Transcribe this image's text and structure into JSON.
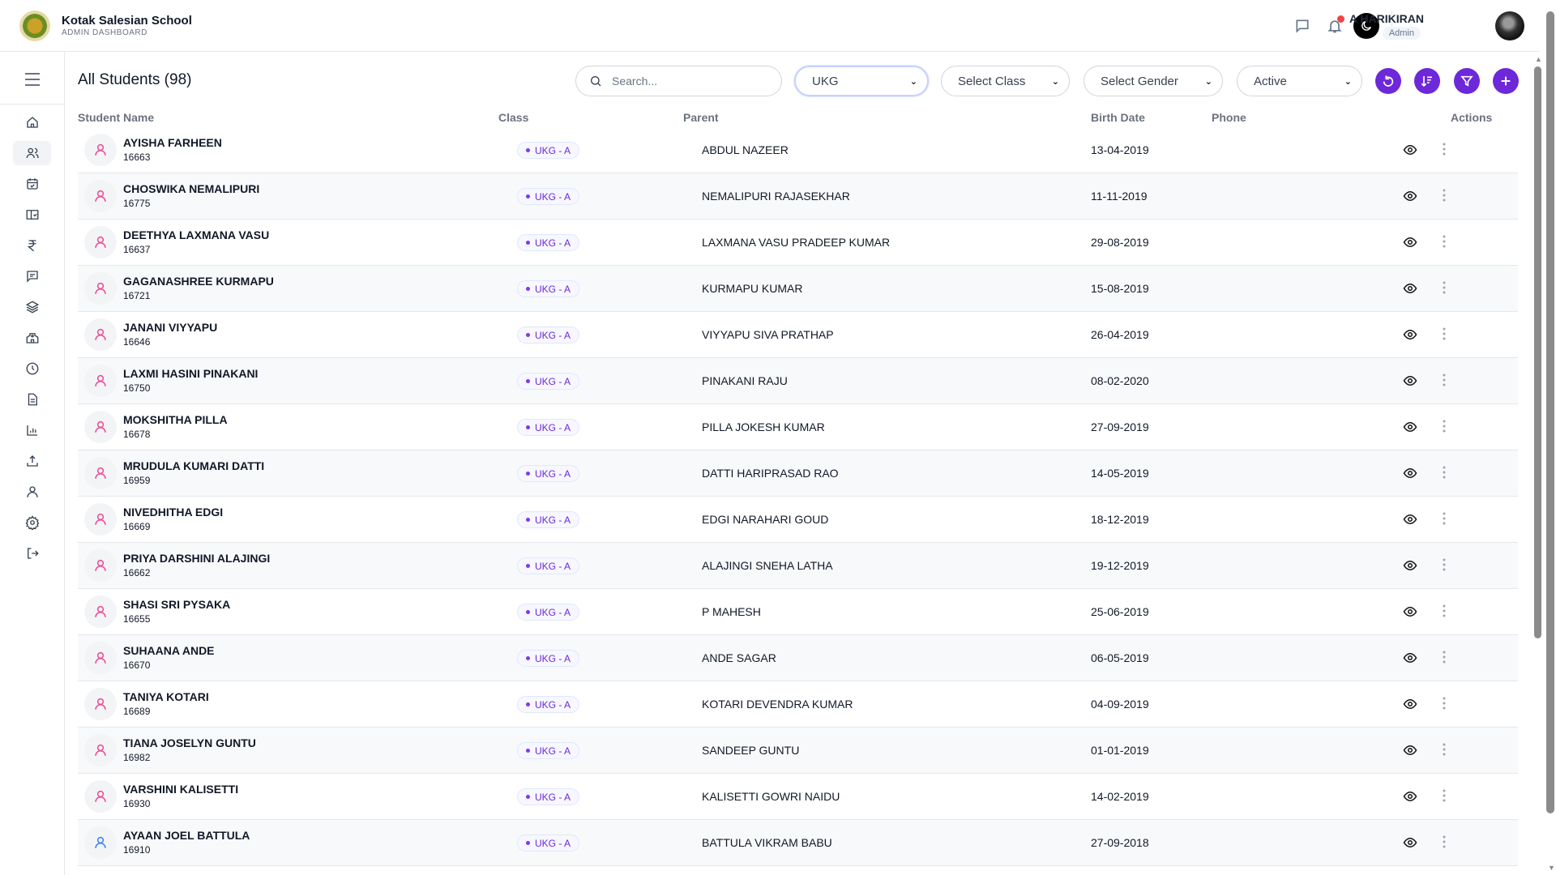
{
  "header": {
    "school_name": "Kotak Salesian School",
    "subtitle": "ADMIN DASHBOARD",
    "user_name": "A HARIKIRAN",
    "user_role": "Admin"
  },
  "sidebar": {
    "items": [
      {
        "icon": "home-icon"
      },
      {
        "icon": "users-icon",
        "active": true
      },
      {
        "icon": "calendar-check-icon"
      },
      {
        "icon": "book-check-icon"
      },
      {
        "icon": "rupee-icon"
      },
      {
        "icon": "message-icon"
      },
      {
        "icon": "layers-icon"
      },
      {
        "icon": "school-icon"
      },
      {
        "icon": "clock-icon"
      },
      {
        "icon": "document-icon"
      },
      {
        "icon": "bar-chart-icon"
      },
      {
        "icon": "upload-icon"
      },
      {
        "icon": "user-icon"
      },
      {
        "icon": "settings-icon"
      },
      {
        "icon": "logout-icon"
      }
    ]
  },
  "page": {
    "title": "All Students (98)"
  },
  "filters": {
    "search_placeholder": "Search...",
    "grade": "UKG",
    "class": "Select Class",
    "gender": "Select Gender",
    "status": "Active"
  },
  "colors": {
    "accent": "#6d28d9",
    "female": "#ec4899",
    "male": "#3b82f6"
  },
  "table": {
    "headers": {
      "name": "Student Name",
      "class": "Class",
      "parent": "Parent",
      "birth": "Birth Date",
      "phone": "Phone",
      "actions": "Actions"
    },
    "rows": [
      {
        "name": "AYISHA FARHEEN",
        "id": "16663",
        "class": "UKG - A",
        "parent": "ABDUL NAZEER",
        "birth": "13-04-2019",
        "gender": "female"
      },
      {
        "name": "CHOSWIKA NEMALIPURI",
        "id": "16775",
        "class": "UKG - A",
        "parent": "NEMALIPURI RAJASEKHAR",
        "birth": "11-11-2019",
        "gender": "female"
      },
      {
        "name": "DEETHYA LAXMANA VASU",
        "id": "16637",
        "class": "UKG - A",
        "parent": "LAXMANA VASU PRADEEP KUMAR",
        "birth": "29-08-2019",
        "gender": "female"
      },
      {
        "name": "GAGANASHREE KURMAPU",
        "id": "16721",
        "class": "UKG - A",
        "parent": "KURMAPU KUMAR",
        "birth": "15-08-2019",
        "gender": "female"
      },
      {
        "name": "JANANI VIYYAPU",
        "id": "16646",
        "class": "UKG - A",
        "parent": "VIYYAPU SIVA PRATHAP",
        "birth": "26-04-2019",
        "gender": "female"
      },
      {
        "name": "LAXMI HASINI PINAKANI",
        "id": "16750",
        "class": "UKG - A",
        "parent": "PINAKANI RAJU",
        "birth": "08-02-2020",
        "gender": "female"
      },
      {
        "name": "MOKSHITHA PILLA",
        "id": "16678",
        "class": "UKG - A",
        "parent": "PILLA JOKESH KUMAR",
        "birth": "27-09-2019",
        "gender": "female"
      },
      {
        "name": "MRUDULA KUMARI DATTI",
        "id": "16959",
        "class": "UKG - A",
        "parent": "DATTI HARIPRASAD RAO",
        "birth": "14-05-2019",
        "gender": "female"
      },
      {
        "name": "NIVEDHITHA EDGI",
        "id": "16669",
        "class": "UKG - A",
        "parent": "EDGI NARAHARI GOUD",
        "birth": "18-12-2019",
        "gender": "female"
      },
      {
        "name": "PRIYA DARSHINI ALAJINGI",
        "id": "16662",
        "class": "UKG - A",
        "parent": "ALAJINGI SNEHA LATHA",
        "birth": "19-12-2019",
        "gender": "female"
      },
      {
        "name": "SHASI SRI PYSAKA",
        "id": "16655",
        "class": "UKG - A",
        "parent": "P MAHESH",
        "birth": "25-06-2019",
        "gender": "female"
      },
      {
        "name": "SUHAANA ANDE",
        "id": "16670",
        "class": "UKG - A",
        "parent": "ANDE SAGAR",
        "birth": "06-05-2019",
        "gender": "female"
      },
      {
        "name": "TANIYA KOTARI",
        "id": "16689",
        "class": "UKG - A",
        "parent": "KOTARI DEVENDRA KUMAR",
        "birth": "04-09-2019",
        "gender": "female"
      },
      {
        "name": "TIANA JOSELYN GUNTU",
        "id": "16982",
        "class": "UKG - A",
        "parent": "SANDEEP GUNTU",
        "birth": "01-01-2019",
        "gender": "female"
      },
      {
        "name": "VARSHINI KALISETTI",
        "id": "16930",
        "class": "UKG - A",
        "parent": "KALISETTI GOWRI NAIDU",
        "birth": "14-02-2019",
        "gender": "female"
      },
      {
        "name": "AYAAN JOEL BATTULA",
        "id": "16910",
        "class": "UKG - A",
        "parent": "BATTULA VIKRAM BABU",
        "birth": "27-09-2018",
        "gender": "male"
      }
    ]
  }
}
